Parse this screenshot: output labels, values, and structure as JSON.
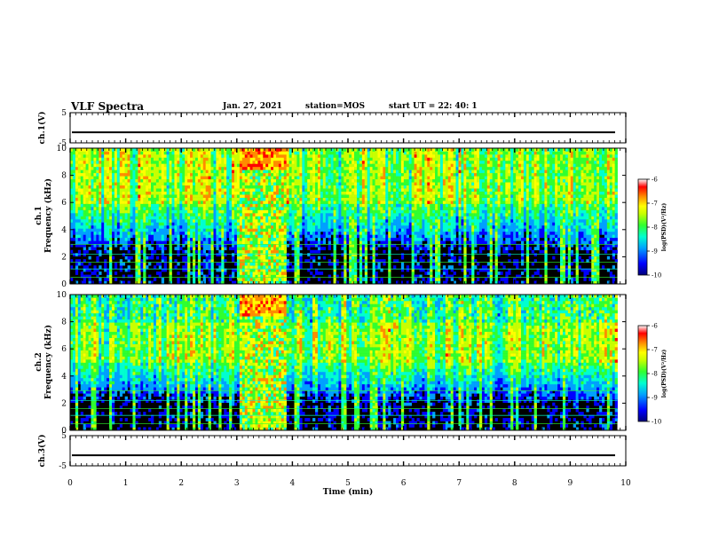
{
  "header": {
    "title": "VLF Spectra",
    "date": "Jan. 27, 2021",
    "station": "station=MOS",
    "start_ut": "start UT =  22: 40: 1"
  },
  "colors": {
    "colormap": [
      "#00007a",
      "#0000ff",
      "#00a0ff",
      "#00ffd0",
      "#30ff30",
      "#c8ff00",
      "#ffff00",
      "#ff8c00",
      "#ff0000",
      "#ffffff"
    ],
    "background": "#000000"
  },
  "chart_data": [
    {
      "type": "line",
      "panel": "ch1-waveform",
      "ylabel": "ch.1(V)",
      "ylim": [
        -5,
        5
      ],
      "yticks": [
        5,
        -5
      ],
      "xlim": [
        0,
        10
      ],
      "baseline_value": -1.5
    },
    {
      "type": "heatmap",
      "panel": "ch1-spectrogram",
      "ylabel": "ch.1\nFrequency (kHz)",
      "ylabel_line1": "ch.1",
      "ylabel_line2": "Frequency (kHz)",
      "ylim": [
        0,
        10
      ],
      "yticks": [
        0,
        2,
        4,
        6,
        8,
        10
      ],
      "xlim": [
        0,
        10
      ],
      "data_end_min": 9.85,
      "colorbar": {
        "label": "log(PSD)(V²/Hz)",
        "range": [
          -10,
          -6
        ],
        "ticks": [
          -6,
          -7,
          -8,
          -9,
          -10
        ]
      },
      "emission_band_khz": [
        6,
        10
      ],
      "broadband_interval_min": [
        3.05,
        3.9
      ]
    },
    {
      "type": "heatmap",
      "panel": "ch2-spectrogram",
      "ylabel": "ch.2\nFrequency (kHz)",
      "ylabel_line1": "ch.2",
      "ylabel_line2": "Frequency (kHz)",
      "ylim": [
        0,
        10
      ],
      "yticks": [
        0,
        2,
        4,
        6,
        8,
        10
      ],
      "xlim": [
        0,
        10
      ],
      "data_end_min": 9.85,
      "colorbar": {
        "label": "log(PSD)(V²/Hz)",
        "range": [
          -10,
          -6
        ],
        "ticks": [
          -6,
          -7,
          -8,
          -9,
          -10
        ]
      },
      "emission_band_khz": [
        5,
        8
      ],
      "broadband_interval_min": [
        3.05,
        3.9
      ]
    },
    {
      "type": "line",
      "panel": "ch3-waveform",
      "ylabel": "ch.3(V)",
      "ylim": [
        -5,
        5
      ],
      "yticks": [
        5,
        -5
      ],
      "xlim": [
        0,
        10
      ],
      "baseline_value": -1.5
    }
  ],
  "xaxis": {
    "label": "Time (min)",
    "ticks": [
      "0",
      "1",
      "2",
      "3",
      "4",
      "5",
      "6",
      "7",
      "8",
      "9",
      "10"
    ]
  }
}
